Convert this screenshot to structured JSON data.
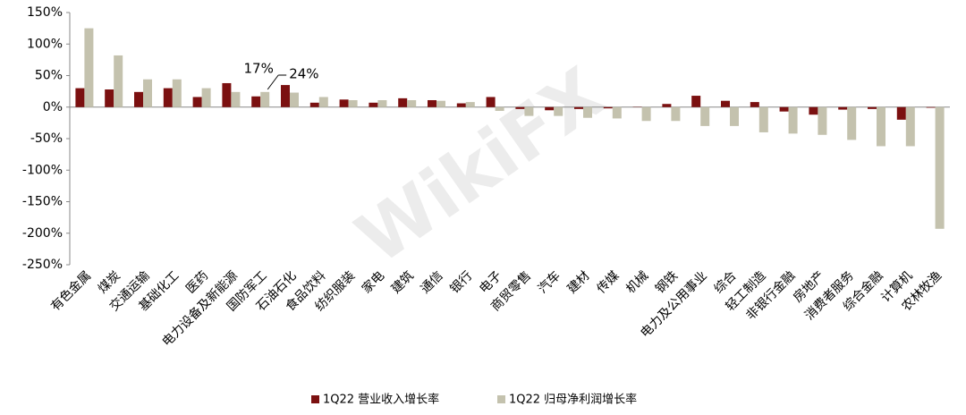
{
  "chart_data": {
    "type": "bar",
    "categories": [
      "有色金属",
      "煤炭",
      "交通运输",
      "基础化工",
      "医药",
      "电力设备及新能源",
      "国防军工",
      "石油石化",
      "食品饮料",
      "纺织服装",
      "家电",
      "建筑",
      "通信",
      "银行",
      "电子",
      "商贸零售",
      "汽车",
      "建材",
      "传媒",
      "机械",
      "钢铁",
      "电力及公用事业",
      "综合",
      "轻工制造",
      "非银行金融",
      "房地产",
      "消费者服务",
      "综合金融",
      "计算机",
      "农林牧渔"
    ],
    "series": [
      {
        "name": "1Q22 营业收入增长率",
        "color": "#7b1010",
        "values": [
          30,
          28,
          24,
          30,
          16,
          38,
          17,
          35,
          7,
          12,
          7,
          14,
          11,
          6,
          16,
          -3,
          -5,
          -3,
          -2,
          0.5,
          5,
          18,
          10,
          8,
          -7,
          -12,
          -4,
          -3,
          -20,
          -1
        ]
      },
      {
        "name": "1Q22 归母净利润增长率",
        "color": "#c4c2ae",
        "values": [
          125,
          82,
          44,
          44,
          30,
          24,
          24,
          23,
          16,
          11,
          11,
          11,
          10,
          8,
          -6,
          -14,
          -14,
          -17,
          -18,
          -22,
          -22,
          -30,
          -30,
          -40,
          -42,
          -44,
          -52,
          -62,
          -62,
          -193
        ]
      }
    ],
    "annotations": [
      "17%",
      "24%"
    ],
    "watermark": "WikiFX",
    "ylim": [
      -250,
      150
    ],
    "yticks": [
      {
        "value": -250,
        "label": "-250%"
      },
      {
        "value": -200,
        "label": "-200%"
      },
      {
        "value": -150,
        "label": "-150%"
      },
      {
        "value": -100,
        "label": "-100%"
      },
      {
        "value": -50,
        "label": "-50%"
      },
      {
        "value": 0,
        "label": "0%"
      },
      {
        "value": 50,
        "label": "50%"
      },
      {
        "value": 100,
        "label": "100%"
      },
      {
        "value": 150,
        "label": "150%"
      }
    ],
    "legend": "bottom"
  }
}
